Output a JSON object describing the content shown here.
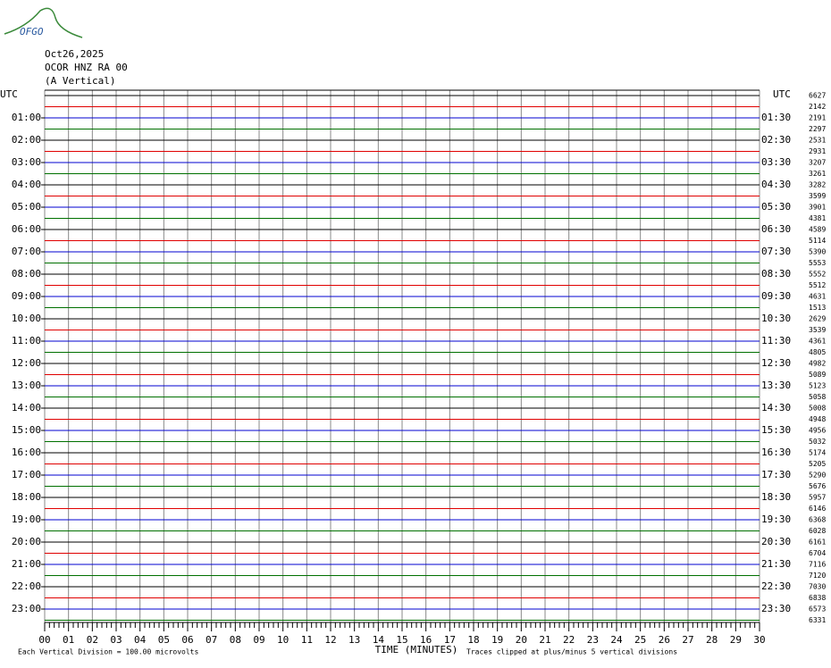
{
  "logo": "OFGO",
  "header": {
    "date": "Oct26,2025",
    "station": "OCOR HNZ RA 00",
    "component": "(A Vertical)"
  },
  "left_corner": "UTC",
  "right_corner": "UTC",
  "left_labels": [
    "01:00",
    "02:00",
    "03:00",
    "04:00",
    "05:00",
    "06:00",
    "07:00",
    "08:00",
    "09:00",
    "10:00",
    "11:00",
    "12:00",
    "13:00",
    "14:00",
    "15:00",
    "16:00",
    "17:00",
    "18:00",
    "19:00",
    "20:00",
    "21:00",
    "22:00",
    "23:00"
  ],
  "right_labels": [
    "01:30",
    "02:30",
    "03:30",
    "04:30",
    "05:30",
    "06:30",
    "07:30",
    "08:30",
    "09:30",
    "10:30",
    "11:30",
    "12:30",
    "13:30",
    "14:30",
    "15:30",
    "16:30",
    "17:30",
    "18:30",
    "19:30",
    "20:30",
    "21:30",
    "22:30",
    "23:30"
  ],
  "trace_values": [
    "6627",
    "2142",
    "2191",
    "2297",
    "2531",
    "2931",
    "3207",
    "3261",
    "3282",
    "3599",
    "3901",
    "4381",
    "4589",
    "5114",
    "5390",
    "5553",
    "5552",
    "5512",
    "4631",
    "1513",
    "2629",
    "3539",
    "4361",
    "4805",
    "4982",
    "5089",
    "5123",
    "5058",
    "5008",
    "4948",
    "4956",
    "5032",
    "5174",
    "5205",
    "5290",
    "5676",
    "5957",
    "6146",
    "6368",
    "6028",
    "6161",
    "6704",
    "7116",
    "7120",
    "7030",
    "6838",
    "6573",
    "6331"
  ],
  "x_ticks": [
    "00",
    "01",
    "02",
    "03",
    "04",
    "05",
    "06",
    "07",
    "08",
    "09",
    "10",
    "11",
    "12",
    "13",
    "14",
    "15",
    "16",
    "17",
    "18",
    "19",
    "20",
    "21",
    "22",
    "23",
    "24",
    "25",
    "26",
    "27",
    "28",
    "29",
    "30"
  ],
  "x_axis_label": "TIME (MINUTES)",
  "footer": {
    "scale": "Each Vertical Division =  100.00 microvolts",
    "clip": "Traces clipped at plus/minus 5 vertical divisions"
  }
}
